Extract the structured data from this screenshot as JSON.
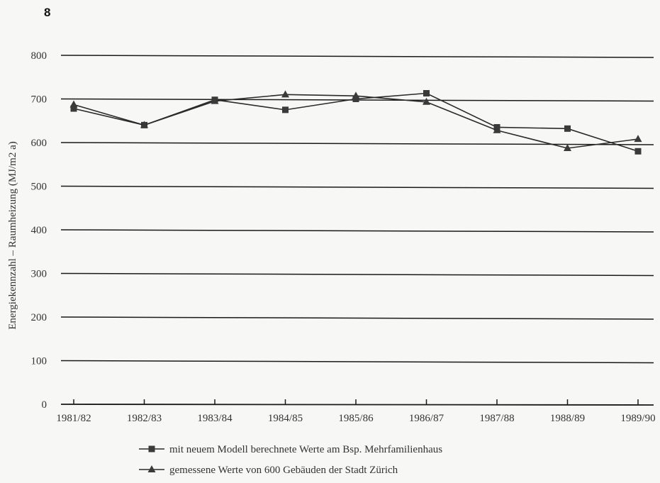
{
  "figure_number": "8",
  "chart_data": {
    "type": "line",
    "categories": [
      "1981/82",
      "1982/83",
      "1983/84",
      "1984/85",
      "1985/86",
      "1986/87",
      "1987/88",
      "1988/89",
      "1989/90"
    ],
    "series": [
      {
        "name": "mit neuem Modell berechnete Werte am Bsp. Mehrfamilienhaus",
        "marker": "square",
        "values": [
          678,
          640,
          698,
          675,
          700,
          713,
          635,
          632,
          580
        ]
      },
      {
        "name": "gemessene Werte von 600 Gebäuden der Stadt Zürich",
        "marker": "triangle",
        "values": [
          687,
          640,
          695,
          710,
          707,
          693,
          628,
          587,
          608
        ]
      }
    ],
    "ylabel": "Energiekennzahl – Raumheizung (MJ/m2 a)",
    "ylim": [
      0,
      800
    ],
    "yticks": [
      0,
      100,
      200,
      300,
      400,
      500,
      600,
      700,
      800
    ],
    "grid": true,
    "legend_position": "bottom"
  }
}
